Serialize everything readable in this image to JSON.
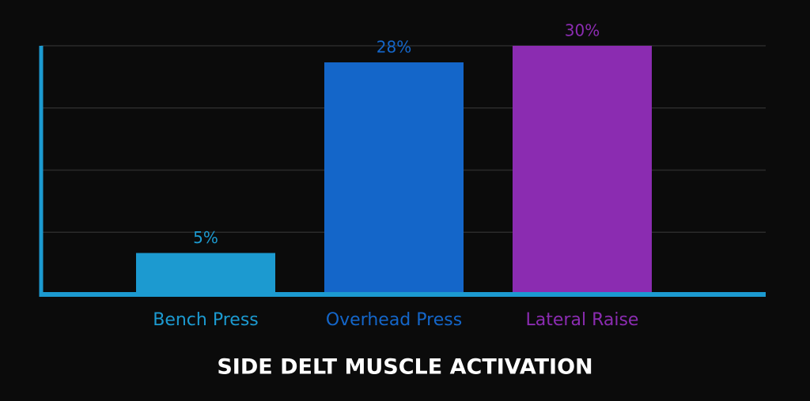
{
  "chart_data": {
    "type": "bar",
    "title": "SIDE DELT MUSCLE ACTIVATION",
    "categories": [
      "Bench Press",
      "Overhead Press",
      "Lateral Raise"
    ],
    "values": [
      5,
      28,
      30
    ],
    "value_labels": [
      "5%",
      "28%",
      "30%"
    ],
    "colors": [
      "#1c9ad0",
      "#1466c9",
      "#8b2cb1"
    ],
    "ylim": [
      0,
      30
    ],
    "yticks": [
      0,
      7.5,
      15,
      22.5,
      30
    ],
    "grid": true
  }
}
